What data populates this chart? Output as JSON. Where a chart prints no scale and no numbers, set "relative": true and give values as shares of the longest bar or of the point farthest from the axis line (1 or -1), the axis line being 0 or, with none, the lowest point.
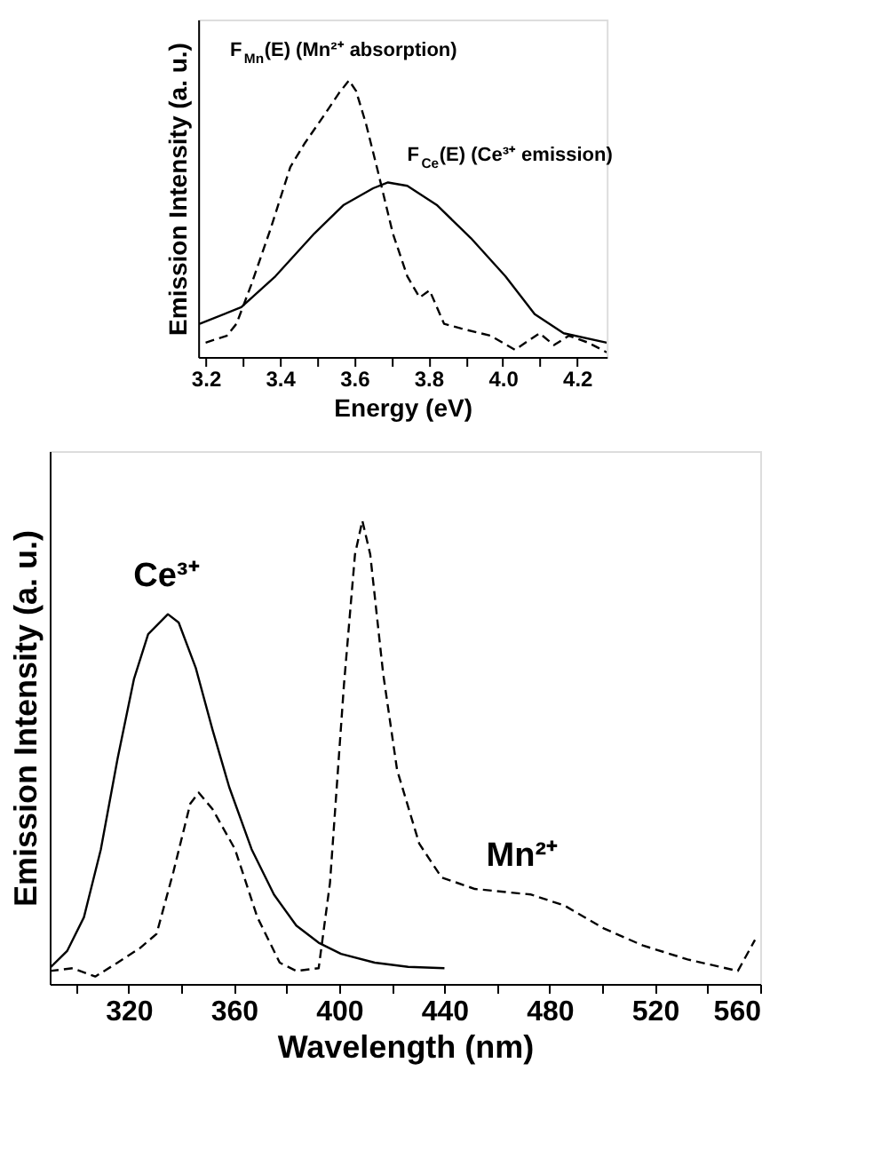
{
  "chart_data": [
    {
      "type": "line",
      "relative": true,
      "xlabel": "Energy (eV)",
      "ylabel": "Emission Intensity (a. u.)",
      "xlim": [
        3.18,
        4.28
      ],
      "xticks": [
        3.2,
        {
          "value": 3.3,
          "label": null
        },
        3.4,
        {
          "value": 3.5,
          "label": null
        },
        3.6,
        {
          "value": 3.7,
          "label": null
        },
        3.8,
        {
          "value": 3.9,
          "label": null
        },
        {
          "value": 4.0,
          "label": "4.0"
        },
        {
          "value": 4.1,
          "label": null
        },
        4.2
      ],
      "grid": false,
      "legend": false,
      "series": [
        {
          "color": "#000000",
          "line_style": "dashed",
          "x": [
            3.2,
            3.257,
            3.283,
            3.322,
            3.375,
            3.428,
            3.467,
            3.52,
            3.559,
            3.586,
            3.605,
            3.632,
            3.664,
            3.704,
            3.743,
            3.776,
            3.803,
            3.842,
            3.888,
            3.967,
            4.033,
            4.099,
            4.138,
            4.178,
            4.23,
            4.28
          ],
          "values": [
            0.052,
            0.077,
            0.12,
            0.258,
            0.464,
            0.687,
            0.773,
            0.876,
            0.954,
            1.0,
            0.962,
            0.842,
            0.67,
            0.447,
            0.292,
            0.215,
            0.241,
            0.12,
            0.103,
            0.077,
            0.026,
            0.086,
            0.043,
            0.077,
            0.052,
            0.017
          ]
        },
        {
          "color": "#000000",
          "line_style": "solid",
          "x": [
            3.184,
            3.296,
            3.388,
            3.493,
            3.572,
            3.651,
            3.691,
            3.743,
            3.822,
            3.914,
            4.007,
            4.086,
            4.164,
            4.28
          ],
          "values": [
            0.12,
            0.18,
            0.292,
            0.447,
            0.55,
            0.61,
            0.631,
            0.619,
            0.55,
            0.43,
            0.292,
            0.155,
            0.086,
            0.052
          ]
        }
      ],
      "annotations": [
        {
          "text": "F$_{Mn}$(E) (Mn²⁺ absorption)",
          "x": 3.586,
          "y": 1.0
        },
        {
          "text": "F$_{Ce}$(E) (Ce³⁺ emission)",
          "x": 3.743,
          "y": 0.619
        }
      ]
    },
    {
      "type": "line",
      "relative": true,
      "xlabel": "Wavelength (nm)",
      "ylabel": "Emission Intensity (a. u.)",
      "xlim": [
        290,
        560
      ],
      "xticks": [
        {
          "value": 300,
          "label": null
        },
        320,
        {
          "value": 340,
          "label": null
        },
        360,
        {
          "value": 380,
          "label": null
        },
        400,
        {
          "value": 420,
          "label": null
        },
        440,
        {
          "value": 460,
          "label": null
        },
        480,
        {
          "value": 500,
          "label": null
        },
        520,
        {
          "value": 540,
          "label": null
        },
        560
      ],
      "grid": false,
      "legend": false,
      "series": [
        {
          "color": "#000000",
          "line_style": "solid",
          "x": [
            290,
            296.6,
            303,
            309.4,
            315.8,
            322,
            327.4,
            334.9,
            339,
            345.5,
            351.9,
            358.2,
            366.7,
            375.2,
            383.7,
            392.2,
            400.7,
            413.5,
            426.2,
            440
          ],
          "values": [
            0.034,
            0.071,
            0.144,
            0.29,
            0.487,
            0.658,
            0.755,
            0.798,
            0.78,
            0.682,
            0.548,
            0.425,
            0.291,
            0.193,
            0.126,
            0.089,
            0.065,
            0.046,
            0.037,
            0.034
          ]
        },
        {
          "color": "#000000",
          "line_style": "dashed",
          "x": [
            290,
            298.8,
            307.3,
            315.8,
            324.2,
            330.6,
            337,
            343.4,
            346.6,
            351.9,
            360.4,
            368.9,
            377.4,
            383.7,
            392.2,
            396.5,
            401.8,
            406,
            408.8,
            411.8,
            416.7,
            422,
            430.4,
            438.9,
            451.6,
            472.9,
            485.7,
            500.5,
            515.4,
            532.4,
            551.5,
            558
          ],
          "values": [
            0.028,
            0.034,
            0.016,
            0.046,
            0.077,
            0.108,
            0.242,
            0.389,
            0.413,
            0.377,
            0.291,
            0.144,
            0.046,
            0.028,
            0.034,
            0.218,
            0.645,
            0.927,
            1.0,
            0.927,
            0.67,
            0.462,
            0.303,
            0.23,
            0.205,
            0.193,
            0.169,
            0.12,
            0.083,
            0.053,
            0.028,
            0.095
          ]
        }
      ],
      "annotations": [
        {
          "text": "Ce³⁺",
          "x": 334.9,
          "y": 0.798
        },
        {
          "text": "Mn²⁺",
          "x": 470,
          "y": 0.193
        }
      ]
    }
  ]
}
